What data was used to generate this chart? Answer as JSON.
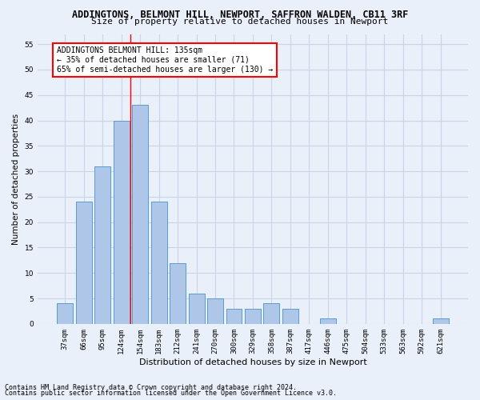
{
  "title": "ADDINGTONS, BELMONT HILL, NEWPORT, SAFFRON WALDEN, CB11 3RF",
  "subtitle": "Size of property relative to detached houses in Newport",
  "xlabel": "Distribution of detached houses by size in Newport",
  "ylabel": "Number of detached properties",
  "categories": [
    "37sqm",
    "66sqm",
    "95sqm",
    "124sqm",
    "154sqm",
    "183sqm",
    "212sqm",
    "241sqm",
    "270sqm",
    "300sqm",
    "329sqm",
    "358sqm",
    "387sqm",
    "417sqm",
    "446sqm",
    "475sqm",
    "504sqm",
    "533sqm",
    "563sqm",
    "592sqm",
    "621sqm"
  ],
  "values": [
    4,
    24,
    31,
    40,
    43,
    24,
    12,
    6,
    5,
    3,
    3,
    4,
    3,
    0,
    1,
    0,
    0,
    0,
    0,
    0,
    1
  ],
  "bar_color": "#aec6e8",
  "bar_edge_color": "#5b9bd5",
  "grid_color": "#c8d4e8",
  "background_color": "#eaf0f9",
  "vline_x": 3.5,
  "vline_color": "red",
  "annotation_text": "ADDINGTONS BELMONT HILL: 135sqm\n← 35% of detached houses are smaller (71)\n65% of semi-detached houses are larger (130) →",
  "annotation_box_color": "white",
  "annotation_box_edge_color": "red",
  "ylim": [
    0,
    57
  ],
  "yticks": [
    0,
    5,
    10,
    15,
    20,
    25,
    30,
    35,
    40,
    45,
    50,
    55
  ],
  "footnote1": "Contains HM Land Registry data © Crown copyright and database right 2024.",
  "footnote2": "Contains public sector information licensed under the Open Government Licence v3.0.",
  "title_fontsize": 8.5,
  "subtitle_fontsize": 8,
  "xlabel_fontsize": 8,
  "ylabel_fontsize": 7.5,
  "tick_fontsize": 6.5,
  "annotation_fontsize": 7,
  "footnote_fontsize": 6
}
